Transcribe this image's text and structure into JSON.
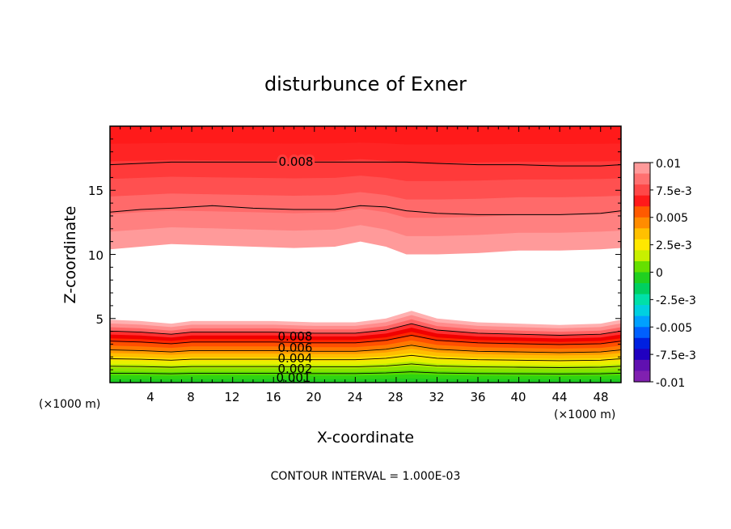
{
  "chart_data": {
    "type": "heatmap",
    "title": "disturbunce of Exner",
    "xlabel": "X-coordinate",
    "ylabel": "Z-coordinate",
    "x_unit_left": "(×1000 m)",
    "x_unit_right": "(×1000 m)",
    "footer": "CONTOUR INTERVAL = 1.000E-03",
    "xlim": [
      0,
      50
    ],
    "ylim": [
      0,
      20
    ],
    "x_ticks": [
      4,
      8,
      12,
      16,
      20,
      24,
      28,
      32,
      36,
      40,
      44,
      48
    ],
    "x_tick_labels": [
      "4",
      "8",
      "12",
      "16",
      "20",
      "24",
      "28",
      "32",
      "36",
      "40",
      "44",
      "48"
    ],
    "y_ticks": [
      5,
      10,
      15
    ],
    "y_tick_labels": [
      "5",
      "10",
      "15"
    ],
    "colorbar": {
      "range": [
        -0.01,
        0.01
      ],
      "labels": [
        "0.01",
        "7.5e-3",
        "0.005",
        "2.5e-3",
        "0",
        "-2.5e-3",
        "-0.005",
        "-7.5e-3",
        "-0.01"
      ],
      "colors_top_to_bottom": [
        "#ff9a9a",
        "#ff7070",
        "#ff4848",
        "#ff1a1a",
        "#ff5a00",
        "#ff8c00",
        "#ffc000",
        "#ffe800",
        "#c8f000",
        "#66e000",
        "#20d020",
        "#00d060",
        "#00e0a8",
        "#00d0e0",
        "#00a0ff",
        "#0060ff",
        "#0020e0",
        "#2000c0",
        "#6010b0",
        "#8020b0"
      ]
    },
    "contour_labels": [
      "0.008",
      "0.008",
      "0.006",
      "0.004",
      "0.002",
      "0.001"
    ],
    "upper_band": {
      "x": [
        0,
        3,
        6,
        10,
        14,
        18,
        22,
        24.5,
        27,
        29,
        32,
        36,
        40,
        44,
        48,
        50
      ],
      "white_top_z": [
        10.4,
        10.6,
        10.8,
        10.7,
        10.6,
        10.5,
        10.6,
        11.0,
        10.6,
        10.0,
        10.0,
        10.1,
        10.3,
        10.3,
        10.4,
        10.5
      ],
      "contour_level_0008_z": [
        17.0,
        17.1,
        17.2,
        17.2,
        17.2,
        17.2,
        17.2,
        17.2,
        17.2,
        17.2,
        17.1,
        17.0,
        17.0,
        16.9,
        16.9,
        17.0
      ],
      "contour_level_mid_z": [
        13.3,
        13.5,
        13.6,
        13.8,
        13.6,
        13.5,
        13.5,
        13.8,
        13.7,
        13.4,
        13.2,
        13.1,
        13.1,
        13.1,
        13.2,
        13.4
      ]
    },
    "lower_band": {
      "x": [
        0,
        3,
        6,
        8,
        12,
        16,
        20,
        24,
        27,
        29.5,
        32,
        36,
        40,
        44,
        48,
        50
      ],
      "white_bottom_z": [
        4.9,
        4.8,
        4.6,
        4.8,
        4.8,
        4.8,
        4.7,
        4.7,
        5.0,
        5.6,
        5.0,
        4.7,
        4.6,
        4.5,
        4.6,
        4.9
      ]
    }
  }
}
